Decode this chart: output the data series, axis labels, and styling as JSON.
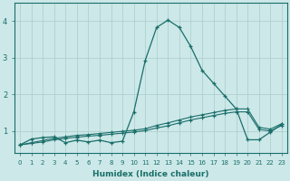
{
  "xlabel": "Humidex (Indice chaleur)",
  "ylabel": "",
  "xlim": [
    -0.5,
    23.5
  ],
  "ylim": [
    0.4,
    4.5
  ],
  "yticks": [
    1,
    2,
    3,
    4
  ],
  "xticks": [
    0,
    1,
    2,
    3,
    4,
    5,
    6,
    7,
    8,
    9,
    10,
    11,
    12,
    13,
    14,
    15,
    16,
    17,
    18,
    19,
    20,
    21,
    22,
    23
  ],
  "background_color": "#cce8e8",
  "line_color": "#1a6e6a",
  "grid_color": "#aacccc",
  "line1_x": [
    0,
    1,
    2,
    3,
    4,
    5,
    6,
    7,
    8,
    9,
    10,
    11,
    12,
    13,
    14,
    15,
    16,
    17,
    18,
    19,
    20,
    21,
    22,
    23
  ],
  "line1_y": [
    0.62,
    0.78,
    0.82,
    0.84,
    0.68,
    0.75,
    0.7,
    0.75,
    0.68,
    0.72,
    1.52,
    2.92,
    3.82,
    4.02,
    3.82,
    3.3,
    2.65,
    2.3,
    1.95,
    1.6,
    0.76,
    0.76,
    0.97,
    1.18
  ],
  "line2_x": [
    0,
    1,
    2,
    3,
    4,
    5,
    6,
    7,
    8,
    9,
    10,
    11,
    12,
    13,
    14,
    15,
    16,
    17,
    18,
    19,
    20,
    21,
    22,
    23
  ],
  "line2_y": [
    0.62,
    0.68,
    0.74,
    0.8,
    0.84,
    0.88,
    0.9,
    0.93,
    0.96,
    0.99,
    1.02,
    1.06,
    1.15,
    1.22,
    1.3,
    1.38,
    1.44,
    1.5,
    1.56,
    1.6,
    1.6,
    1.1,
    1.05,
    1.2
  ],
  "line3_x": [
    0,
    1,
    2,
    3,
    4,
    5,
    6,
    7,
    8,
    9,
    10,
    11,
    12,
    13,
    14,
    15,
    16,
    17,
    18,
    19,
    20,
    21,
    22,
    23
  ],
  "line3_y": [
    0.62,
    0.66,
    0.7,
    0.76,
    0.8,
    0.83,
    0.86,
    0.88,
    0.91,
    0.94,
    0.97,
    1.01,
    1.08,
    1.14,
    1.22,
    1.3,
    1.36,
    1.42,
    1.48,
    1.52,
    1.52,
    1.04,
    1.0,
    1.15
  ]
}
